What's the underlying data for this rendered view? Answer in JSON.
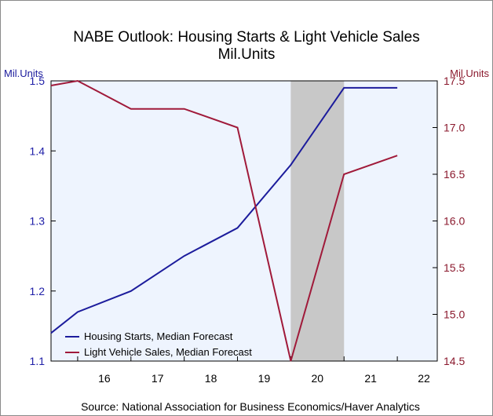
{
  "chart_data": {
    "type": "line",
    "title": "NABE Outlook: Housing Starts & Light Vehicle Sales",
    "subtitle": "Mil.Units",
    "y_left_label": "Mil.Units",
    "y_right_label": "Mil.Units",
    "x_ticks": [
      "16",
      "17",
      "18",
      "19",
      "20",
      "21",
      "22"
    ],
    "y_left_ticks": [
      "1.1",
      "1.2",
      "1.3",
      "1.4",
      "1.5"
    ],
    "y_right_ticks": [
      "14.5",
      "15.0",
      "15.5",
      "16.0",
      "16.5",
      "17.0",
      "17.5"
    ],
    "y_left_lim": [
      1.1,
      1.5
    ],
    "y_right_lim": [
      14.5,
      17.5
    ],
    "x": [
      "2015 Q3",
      "2016 Q1",
      "2017 Q1",
      "2018 Q1",
      "2019 Q1",
      "2020 Q1",
      "2021 Q1",
      "2022 Q1"
    ],
    "series": [
      {
        "name": "Housing Starts, Median Forecast",
        "axis": "left",
        "color": "#1c1c9c",
        "values": [
          1.14,
          1.17,
          1.2,
          1.25,
          1.29,
          1.38,
          1.49,
          1.49
        ]
      },
      {
        "name": "Light Vehicle Sales, Median Forecast",
        "axis": "right",
        "color": "#a01a3a",
        "values": [
          17.45,
          17.5,
          17.2,
          17.2,
          17.0,
          14.5,
          16.5,
          16.7
        ]
      }
    ],
    "recession_shading": [
      "2020 Q1",
      "2021 Q1"
    ],
    "legend_position": "bottom-left",
    "grid": false
  },
  "source": "Source:  National Association for Business Economics/Haver Analytics",
  "colors": {
    "plot_background": "#eef4fe",
    "recession": "#c8c8c8",
    "left_axis": "#1c1c9c",
    "right_axis": "#a01a3a"
  }
}
